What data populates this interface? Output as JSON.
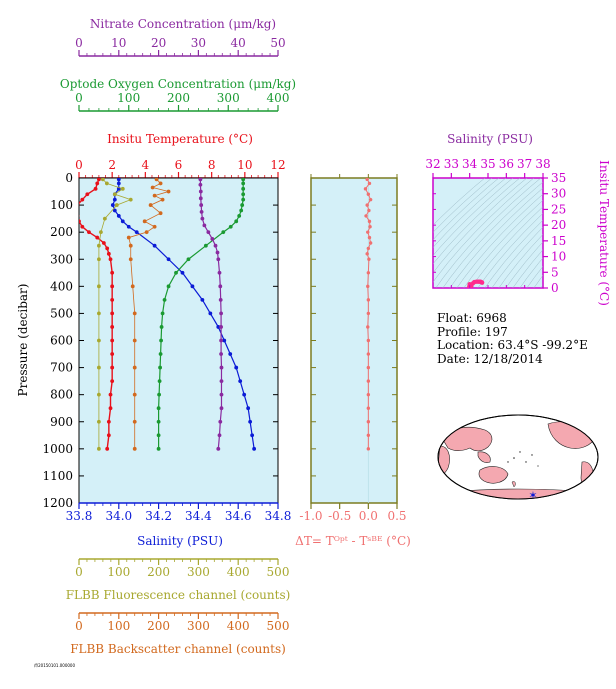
{
  "colors": {
    "temperature": "#e8101a",
    "salinity": "#0b1bd6",
    "oxygen": "#1a9a32",
    "nitrate": "#8a2aa0",
    "fluorescence": "#a8a830",
    "backscatter": "#d2691e",
    "delta_t": "#f07070",
    "panel_bg": "#d4f0f8",
    "ts_axis": "#cc00cc",
    "land": "#f4a8b0",
    "ocean": "#ffffff"
  },
  "info": {
    "float": "Float:  6968",
    "profile": "Profile:  197",
    "location": "Location:  63.4°S  -99.2°E",
    "date": "Date:  12/18/2014"
  },
  "footer_code": "/f/20150101.000000",
  "chart_data": [
    {
      "id": "main-profile",
      "type": "line",
      "ylabel": "Pressure (decibar)",
      "ylim": [
        1200,
        0
      ],
      "yticks": [
        0,
        100,
        200,
        300,
        400,
        500,
        600,
        700,
        800,
        900,
        1000,
        1100,
        1200
      ],
      "grid": false,
      "axes": {
        "temperature": {
          "label": "Insitu Temperature (°C)",
          "range": [
            0,
            12
          ],
          "ticks": [
            "0",
            "2",
            "4",
            "6",
            "8",
            "10",
            "12"
          ],
          "position": "top"
        },
        "oxygen": {
          "label": "Optode Oxygen Concentration (μm/kg)",
          "range": [
            0,
            400
          ],
          "ticks": [
            "0",
            "100",
            "200",
            "300",
            "400"
          ],
          "position": "top"
        },
        "nitrate": {
          "label": "Nitrate Concentration (μm/kg)",
          "range": [
            0,
            50
          ],
          "ticks": [
            "0",
            "10",
            "20",
            "30",
            "40",
            "50"
          ],
          "position": "top"
        },
        "salinity": {
          "label": "Salinity (PSU)",
          "range": [
            33.8,
            34.8
          ],
          "ticks": [
            "33.8",
            "34.0",
            "34.2",
            "34.4",
            "34.6",
            "34.8"
          ],
          "position": "bottom"
        },
        "fluorescence": {
          "label": "FLBB Fluorescence channel (counts)",
          "range": [
            0,
            500
          ],
          "ticks": [
            "0",
            "100",
            "200",
            "300",
            "400",
            "500"
          ],
          "position": "bottom"
        },
        "backscatter": {
          "label": "FLBB Backscatter channel (counts)",
          "range": [
            0,
            500
          ],
          "ticks": [
            "0",
            "100",
            "200",
            "300",
            "400",
            "500"
          ],
          "position": "bottom"
        }
      },
      "series": [
        {
          "key": "temperature",
          "pressure": [
            5,
            20,
            40,
            60,
            80,
            100,
            120,
            140,
            160,
            180,
            200,
            220,
            240,
            260,
            280,
            300,
            350,
            400,
            450,
            500,
            550,
            600,
            650,
            700,
            750,
            800,
            850,
            900,
            950,
            1000
          ],
          "values": [
            1.2,
            1.1,
            1.0,
            0.5,
            0.2,
            -0.1,
            -0.2,
            -0.1,
            0.0,
            0.2,
            0.6,
            1.1,
            1.5,
            1.7,
            1.8,
            1.9,
            2.0,
            2.0,
            2.0,
            2.0,
            2.0,
            2.0,
            2.0,
            2.0,
            2.0,
            1.9,
            1.9,
            1.8,
            1.8,
            1.7
          ]
        },
        {
          "key": "salinity",
          "pressure": [
            5,
            20,
            40,
            60,
            80,
            100,
            120,
            140,
            160,
            180,
            200,
            250,
            300,
            350,
            400,
            450,
            500,
            550,
            600,
            650,
            700,
            750,
            800,
            850,
            900,
            950,
            1000
          ],
          "values": [
            34.0,
            34.0,
            34.0,
            33.98,
            33.98,
            33.97,
            33.98,
            34.0,
            34.02,
            34.05,
            34.09,
            34.18,
            34.25,
            34.32,
            34.37,
            34.42,
            34.46,
            34.5,
            34.53,
            34.56,
            34.59,
            34.61,
            34.63,
            34.65,
            34.66,
            34.67,
            34.68
          ]
        },
        {
          "key": "oxygen",
          "pressure": [
            5,
            20,
            40,
            60,
            80,
            100,
            120,
            140,
            160,
            180,
            200,
            250,
            300,
            350,
            400,
            450,
            500,
            550,
            600,
            650,
            700,
            750,
            800,
            850,
            900,
            950,
            1000
          ],
          "values": [
            330,
            330,
            330,
            330,
            330,
            328,
            326,
            322,
            316,
            305,
            290,
            255,
            220,
            195,
            180,
            172,
            168,
            166,
            165,
            164,
            163,
            162,
            161,
            160,
            160,
            160,
            160
          ]
        },
        {
          "key": "nitrate",
          "pressure": [
            5,
            25,
            50,
            75,
            100,
            125,
            150,
            175,
            200,
            225,
            250,
            275,
            300,
            350,
            400,
            450,
            500,
            550,
            600,
            650,
            700,
            750,
            800,
            850,
            900,
            950,
            1000
          ],
          "values": [
            30.5,
            30.5,
            30.6,
            30.6,
            30.7,
            30.8,
            31.0,
            31.5,
            32.5,
            33.5,
            34.3,
            34.8,
            35.0,
            35.3,
            35.5,
            35.6,
            35.7,
            35.7,
            35.7,
            35.7,
            35.8,
            35.8,
            35.8,
            35.8,
            35.5,
            35.3,
            35.0
          ]
        },
        {
          "key": "fluorescence",
          "pressure": [
            5,
            20,
            40,
            60,
            80,
            100,
            150,
            200,
            250,
            300,
            400,
            500,
            600,
            700,
            800,
            900,
            1000
          ],
          "values": [
            60,
            70,
            110,
            90,
            130,
            95,
            65,
            55,
            50,
            50,
            50,
            50,
            50,
            50,
            50,
            50,
            50
          ]
        },
        {
          "key": "backscatter",
          "pressure": [
            5,
            20,
            35,
            50,
            65,
            80,
            100,
            130,
            160,
            180,
            200,
            220,
            250,
            300,
            400,
            500,
            600,
            700,
            800,
            900,
            1000
          ],
          "values": [
            195,
            205,
            185,
            225,
            190,
            210,
            180,
            205,
            165,
            190,
            170,
            125,
            130,
            130,
            135,
            140,
            140,
            140,
            140,
            140,
            140
          ]
        }
      ]
    },
    {
      "id": "delta-t",
      "type": "line",
      "xlabel": "ΔT= Tᴼᵖᵗ - Tˢᴮᴱ (°C)",
      "xlim": [
        -1.0,
        0.5
      ],
      "xticks": [
        "-1.0",
        "-0.5",
        "0.0",
        "0.5"
      ],
      "ylim": [
        1200,
        0
      ],
      "series": [
        {
          "name": "",
          "pressure": [
            5,
            20,
            40,
            60,
            80,
            100,
            120,
            140,
            160,
            180,
            200,
            220,
            240,
            260,
            280,
            300,
            350,
            400,
            450,
            500,
            550,
            600,
            650,
            700,
            750,
            800,
            850,
            900,
            950,
            1000
          ],
          "values": [
            -0.02,
            0.02,
            -0.05,
            0.0,
            0.04,
            -0.02,
            0.01,
            -0.04,
            0.02,
            0.03,
            -0.01,
            0.02,
            0.04,
            0.0,
            -0.02,
            0.01,
            0.0,
            -0.01,
            0.0,
            0.0,
            -0.01,
            0.0,
            0.0,
            0.0,
            0.0,
            0.0,
            0.0,
            0.0,
            0.0,
            0.0
          ]
        }
      ]
    },
    {
      "id": "ts-diagram",
      "type": "scatter",
      "title": "Salinity (PSU)",
      "ylabel": "Insitu Temperature (°C)",
      "xlim": [
        32,
        38
      ],
      "ylim": [
        0,
        35
      ],
      "xticks": [
        "32",
        "33",
        "34",
        "35",
        "36",
        "37",
        "38"
      ],
      "yticks": [
        "0",
        "5",
        "10",
        "15",
        "20",
        "25",
        "30",
        "35"
      ],
      "points": [
        {
          "x": 34.0,
          "y": 1.2
        },
        {
          "x": 33.98,
          "y": 0.5
        },
        {
          "x": 33.97,
          "y": -0.1
        },
        {
          "x": 34.02,
          "y": 0.0
        },
        {
          "x": 34.09,
          "y": 0.6
        },
        {
          "x": 34.18,
          "y": 1.5
        },
        {
          "x": 34.25,
          "y": 1.9
        },
        {
          "x": 34.37,
          "y": 2.0
        },
        {
          "x": 34.46,
          "y": 2.0
        },
        {
          "x": 34.53,
          "y": 2.0
        },
        {
          "x": 34.59,
          "y": 2.0
        },
        {
          "x": 34.63,
          "y": 1.9
        },
        {
          "x": 34.66,
          "y": 1.8
        },
        {
          "x": 34.68,
          "y": 1.7
        }
      ]
    },
    {
      "id": "location-map",
      "type": "map",
      "marker": {
        "lat": -63.4,
        "lon": -99.2
      }
    }
  ]
}
